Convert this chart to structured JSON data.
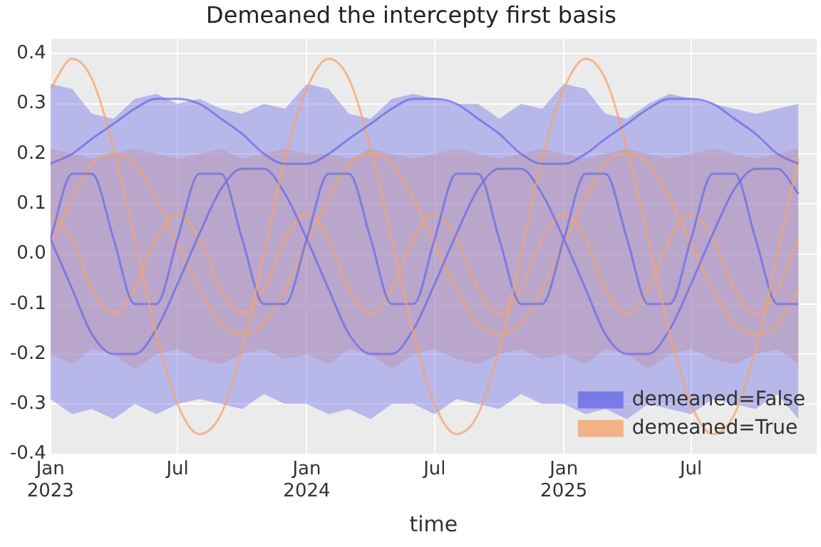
{
  "chart_data": {
    "type": "line",
    "title": "Demeaned the intercepty first basis",
    "xlabel": "time",
    "x": [
      "2023-01",
      "2023-02",
      "2023-03",
      "2023-04",
      "2023-05",
      "2023-06",
      "2023-07",
      "2023-08",
      "2023-09",
      "2023-10",
      "2023-11",
      "2023-12",
      "2024-01",
      "2024-02",
      "2024-03",
      "2024-04",
      "2024-05",
      "2024-06",
      "2024-07",
      "2024-08",
      "2024-09",
      "2024-10",
      "2024-11",
      "2024-12",
      "2025-01",
      "2025-02",
      "2025-03",
      "2025-04",
      "2025-05",
      "2025-06",
      "2025-07",
      "2025-08",
      "2025-09",
      "2025-10",
      "2025-11",
      "2025-12"
    ],
    "series": [
      {
        "name": "demeaned=False",
        "color": "#6a6ae6",
        "values": [
          0.18,
          0.2,
          0.23,
          0.26,
          0.29,
          0.31,
          0.31,
          0.3,
          0.27,
          0.24,
          0.2,
          0.18,
          0.18,
          0.2,
          0.23,
          0.26,
          0.29,
          0.31,
          0.31,
          0.3,
          0.27,
          0.24,
          0.2,
          0.18,
          0.18,
          0.2,
          0.23,
          0.26,
          0.29,
          0.31,
          0.31,
          0.3,
          0.27,
          0.24,
          0.2,
          0.18
        ],
        "upper": [
          0.34,
          0.33,
          0.28,
          0.27,
          0.31,
          0.32,
          0.3,
          0.31,
          0.29,
          0.28,
          0.3,
          0.29,
          0.34,
          0.33,
          0.28,
          0.27,
          0.31,
          0.32,
          0.31,
          0.3,
          0.3,
          0.27,
          0.3,
          0.29,
          0.34,
          0.33,
          0.28,
          0.27,
          0.3,
          0.32,
          0.31,
          0.3,
          0.29,
          0.28,
          0.29,
          0.3
        ],
        "lower": [
          -0.29,
          -0.32,
          -0.31,
          -0.33,
          -0.3,
          -0.32,
          -0.3,
          -0.29,
          -0.3,
          -0.31,
          -0.28,
          -0.3,
          -0.3,
          -0.32,
          -0.31,
          -0.33,
          -0.3,
          -0.3,
          -0.32,
          -0.29,
          -0.3,
          -0.31,
          -0.28,
          -0.3,
          -0.3,
          -0.32,
          -0.31,
          -0.33,
          -0.3,
          -0.31,
          -0.32,
          -0.29,
          -0.3,
          -0.31,
          -0.28,
          -0.33
        ]
      },
      {
        "name": "demeaned=True",
        "color": "#f4a46c",
        "values": [
          0.33,
          0.39,
          0.35,
          0.21,
          0.03,
          -0.16,
          -0.3,
          -0.36,
          -0.32,
          -0.19,
          0.0,
          0.19,
          0.33,
          0.39,
          0.35,
          0.21,
          0.03,
          -0.16,
          -0.3,
          -0.36,
          -0.32,
          -0.19,
          0.0,
          0.19,
          0.33,
          0.39,
          0.35,
          0.21,
          0.03,
          -0.16,
          -0.3,
          -0.36,
          -0.32,
          -0.19,
          0.0,
          0.19
        ],
        "upper": [
          0.21,
          0.2,
          0.19,
          0.2,
          0.21,
          0.2,
          0.19,
          0.2,
          0.21,
          0.19,
          0.2,
          0.21,
          0.2,
          0.2,
          0.19,
          0.21,
          0.2,
          0.19,
          0.2,
          0.21,
          0.2,
          0.19,
          0.2,
          0.21,
          0.2,
          0.19,
          0.2,
          0.21,
          0.2,
          0.19,
          0.2,
          0.21,
          0.2,
          0.19,
          0.2,
          0.21
        ],
        "lower": [
          -0.2,
          -0.22,
          -0.19,
          -0.2,
          -0.23,
          -0.2,
          -0.19,
          -0.21,
          -0.22,
          -0.2,
          -0.19,
          -0.21,
          -0.2,
          -0.22,
          -0.19,
          -0.2,
          -0.23,
          -0.2,
          -0.19,
          -0.21,
          -0.22,
          -0.2,
          -0.19,
          -0.21,
          -0.2,
          -0.22,
          -0.19,
          -0.2,
          -0.23,
          -0.2,
          -0.19,
          -0.21,
          -0.22,
          -0.2,
          -0.19,
          -0.22
        ]
      },
      {
        "color": "#6a6ae6",
        "values": [
          0.03,
          -0.07,
          -0.16,
          -0.2,
          -0.2,
          -0.15,
          -0.06,
          0.04,
          0.13,
          0.17,
          0.17,
          0.12,
          0.03,
          -0.07,
          -0.16,
          -0.2,
          -0.2,
          -0.15,
          -0.06,
          0.04,
          0.13,
          0.17,
          0.17,
          0.12,
          0.03,
          -0.07,
          -0.16,
          -0.2,
          -0.2,
          -0.15,
          -0.06,
          0.04,
          0.13,
          0.17,
          0.17,
          0.12
        ]
      },
      {
        "color": "#6a6ae6",
        "values": [
          0.03,
          0.16,
          0.16,
          0.03,
          -0.1,
          -0.1,
          0.03,
          0.16,
          0.16,
          0.03,
          -0.1,
          -0.1,
          0.03,
          0.16,
          0.16,
          0.03,
          -0.1,
          -0.1,
          0.03,
          0.16,
          0.16,
          0.03,
          -0.1,
          -0.1,
          0.03,
          0.16,
          0.16,
          0.03,
          -0.1,
          -0.1,
          0.03,
          0.16,
          0.16,
          0.03,
          -0.1,
          -0.1
        ]
      },
      {
        "color": "#f4a46c",
        "values": [
          0.08,
          0.03,
          -0.07,
          -0.12,
          -0.07,
          0.03,
          0.08,
          0.03,
          -0.07,
          -0.12,
          -0.07,
          0.03,
          0.08,
          0.03,
          -0.07,
          -0.12,
          -0.07,
          0.03,
          0.08,
          0.03,
          -0.07,
          -0.12,
          -0.07,
          0.03,
          0.08,
          0.03,
          -0.07,
          -0.12,
          -0.07,
          0.03,
          0.08,
          0.03,
          -0.07,
          -0.12,
          -0.07,
          0.03
        ]
      },
      {
        "color": "#f4a46c",
        "values": [
          0.02,
          0.11,
          0.18,
          0.2,
          0.18,
          0.11,
          0.02,
          -0.07,
          -0.14,
          -0.16,
          -0.14,
          -0.07,
          0.02,
          0.11,
          0.18,
          0.2,
          0.18,
          0.11,
          0.02,
          -0.07,
          -0.14,
          -0.16,
          -0.14,
          -0.07,
          0.02,
          0.11,
          0.18,
          0.2,
          0.18,
          0.11,
          0.02,
          -0.07,
          -0.14,
          -0.16,
          -0.14,
          -0.07
        ]
      }
    ],
    "xlim": [
      "2023-01-01",
      "2025-12-27"
    ],
    "xticks": [
      {
        "value": "2023-01",
        "label": "Jan\n2023"
      },
      {
        "value": "2023-07",
        "label": "Jul"
      },
      {
        "value": "2024-01",
        "label": "Jan\n2024"
      },
      {
        "value": "2024-07",
        "label": "Jul"
      },
      {
        "value": "2025-01",
        "label": "Jan\n2025"
      },
      {
        "value": "2025-07",
        "label": "Jul"
      }
    ],
    "ylim": [
      -0.4,
      0.43
    ],
    "yticks": [
      -0.4,
      -0.3,
      -0.2,
      -0.1,
      {
        "value": 0,
        "label": "0.0"
      },
      0.1,
      0.2,
      0.3,
      0.4
    ],
    "grid": true,
    "legend": "bottom right",
    "marker": "none"
  }
}
